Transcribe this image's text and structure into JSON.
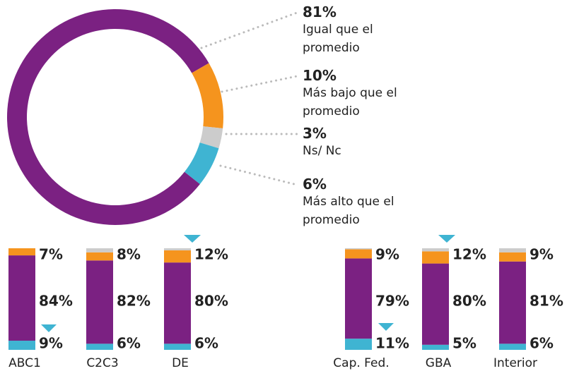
{
  "chart_data": [
    {
      "type": "donut",
      "categories": [
        "Igual que el promedio",
        "Más bajo que el promedio",
        "Ns/ Nc",
        "Más alto que el promedio"
      ],
      "values": [
        81,
        10,
        3,
        6
      ],
      "value_labels": [
        "81%",
        "10%",
        "3%",
        "6%"
      ],
      "colors": [
        "#7b2182",
        "#f5941e",
        "#cccccc",
        "#3fb4d2"
      ]
    },
    {
      "type": "stacked_bar",
      "categories": [
        "ABC1",
        "C2C3",
        "DE",
        "Cap. Fed.",
        "GBA",
        "Interior"
      ],
      "series": [
        {
          "color": "#3fb4d2",
          "values": [
            9,
            6,
            6,
            11,
            5,
            6
          ],
          "value_labels": [
            "9%",
            "6%",
            "6%",
            "11%",
            "5%",
            "6%"
          ]
        },
        {
          "color": "#7b2182",
          "values": [
            84,
            82,
            80,
            79,
            80,
            81
          ],
          "value_labels": [
            "84%",
            "82%",
            "80%",
            "79%",
            "80%",
            "81%"
          ]
        },
        {
          "color": "#f5941e",
          "values": [
            7,
            8,
            12,
            9,
            12,
            9
          ],
          "value_labels": [
            "7%",
            "8%",
            "12%",
            "9%",
            "12%",
            "9%"
          ]
        },
        {
          "color": "#cccccc",
          "values": [
            0,
            4,
            2,
            1,
            3,
            4
          ]
        }
      ]
    }
  ]
}
